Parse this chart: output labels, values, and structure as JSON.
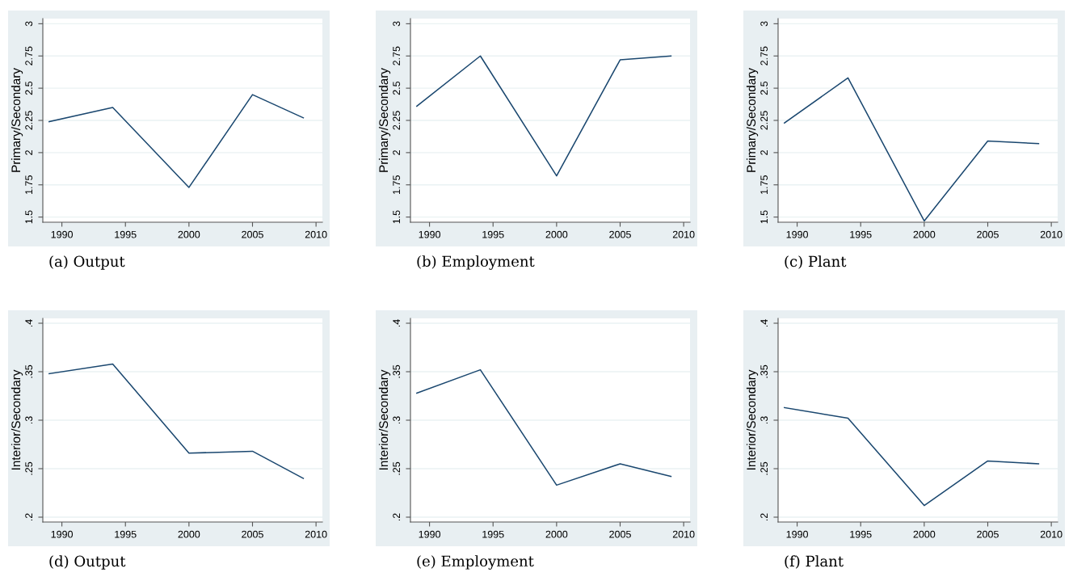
{
  "chart_data": [
    {
      "type": "line",
      "title": "(a) Output",
      "ylabel": "Primary/Secondary",
      "x": [
        1989,
        1994,
        2000,
        2005,
        2009
      ],
      "series": [
        {
          "color": "#1a476f",
          "values": [
            2.24,
            2.35,
            1.73,
            2.45,
            2.27
          ]
        }
      ],
      "xlim": [
        1988.5,
        2010.5
      ],
      "xticks": [
        1990,
        1995,
        2000,
        2005,
        2010
      ],
      "ylim": [
        1.46,
        3.04
      ],
      "yticks": [
        1.5,
        1.75,
        2,
        2.25,
        2.5,
        2.75,
        3
      ],
      "grid": "y"
    },
    {
      "type": "line",
      "title": "(b) Employment",
      "ylabel": "Primary/Secondary",
      "x": [
        1989,
        1994,
        2000,
        2005,
        2009
      ],
      "series": [
        {
          "color": "#1a476f",
          "values": [
            2.36,
            2.75,
            1.82,
            2.72,
            2.75
          ]
        }
      ],
      "xlim": [
        1988.5,
        2010.5
      ],
      "xticks": [
        1990,
        1995,
        2000,
        2005,
        2010
      ],
      "ylim": [
        1.46,
        3.04
      ],
      "yticks": [
        1.5,
        1.75,
        2,
        2.25,
        2.5,
        2.75,
        3
      ],
      "grid": "y"
    },
    {
      "type": "line",
      "title": "(c) Plant",
      "ylabel": "Primary/Secondary",
      "x": [
        1989,
        1994,
        2000,
        2005,
        2009
      ],
      "series": [
        {
          "color": "#1a476f",
          "values": [
            2.23,
            2.58,
            1.47,
            2.09,
            2.07
          ]
        }
      ],
      "xlim": [
        1988.5,
        2010.5
      ],
      "xticks": [
        1990,
        1995,
        2000,
        2005,
        2010
      ],
      "ylim": [
        1.46,
        3.04
      ],
      "yticks": [
        1.5,
        1.75,
        2,
        2.25,
        2.5,
        2.75,
        3
      ],
      "grid": "y"
    },
    {
      "type": "line",
      "title": "(d) Output",
      "ylabel": "Interior/Secondary",
      "x": [
        1989,
        1994,
        2000,
        2005,
        2009
      ],
      "series": [
        {
          "color": "#1a476f",
          "values": [
            0.348,
            0.358,
            0.266,
            0.268,
            0.24
          ]
        }
      ],
      "xlim": [
        1988.5,
        2010.5
      ],
      "xticks": [
        1990,
        1995,
        2000,
        2005,
        2010
      ],
      "ylim": [
        0.195,
        0.405
      ],
      "yticks": [
        {
          "value": 0.2,
          "label": ".2"
        },
        {
          "value": 0.25,
          "label": ".25"
        },
        {
          "value": 0.3,
          "label": ".3"
        },
        {
          "value": 0.35,
          "label": ".35"
        },
        {
          "value": 0.4,
          "label": ".4"
        }
      ],
      "grid": "y"
    },
    {
      "type": "line",
      "title": "(e) Employment",
      "ylabel": "Interior/Secondary",
      "x": [
        1989,
        1994,
        2000,
        2005,
        2009
      ],
      "series": [
        {
          "color": "#1a476f",
          "values": [
            0.328,
            0.352,
            0.233,
            0.255,
            0.242
          ]
        }
      ],
      "xlim": [
        1988.5,
        2010.5
      ],
      "xticks": [
        1990,
        1995,
        2000,
        2005,
        2010
      ],
      "ylim": [
        0.195,
        0.405
      ],
      "yticks": [
        {
          "value": 0.2,
          "label": ".2"
        },
        {
          "value": 0.25,
          "label": ".25"
        },
        {
          "value": 0.3,
          "label": ".3"
        },
        {
          "value": 0.35,
          "label": ".35"
        },
        {
          "value": 0.4,
          "label": ".4"
        }
      ],
      "grid": "y"
    },
    {
      "type": "line",
      "title": "(f) Plant",
      "ylabel": "Interior/Secondary",
      "x": [
        1989,
        1994,
        2000,
        2005,
        2009
      ],
      "series": [
        {
          "color": "#1a476f",
          "values": [
            0.313,
            0.302,
            0.212,
            0.258,
            0.255
          ]
        }
      ],
      "xlim": [
        1988.5,
        2010.5
      ],
      "xticks": [
        1990,
        1995,
        2000,
        2005,
        2010
      ],
      "ylim": [
        0.195,
        0.405
      ],
      "yticks": [
        {
          "value": 0.2,
          "label": ".2"
        },
        {
          "value": 0.25,
          "label": ".25"
        },
        {
          "value": 0.3,
          "label": ".3"
        },
        {
          "value": 0.35,
          "label": ".35"
        },
        {
          "value": 0.4,
          "label": ".4"
        }
      ],
      "grid": "y"
    }
  ]
}
